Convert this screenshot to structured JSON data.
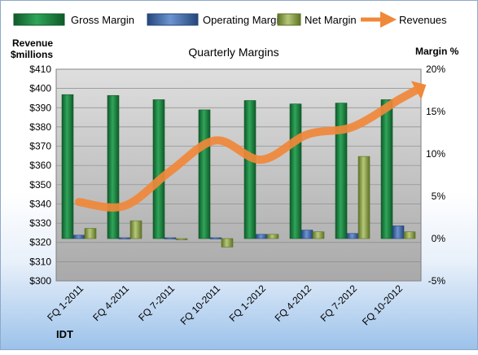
{
  "chart_data": {
    "type": "bar",
    "title": "Quarterly Margins",
    "left_axis_title": [
      "Revenue",
      "$millions"
    ],
    "right_axis_title": "Margin %",
    "footer_label": "IDT",
    "categories": [
      "FQ 1-2011",
      "FQ 4-2011",
      "FQ 7-2011",
      "FQ 10-2011",
      "FQ 1-2012",
      "FQ 4-2012",
      "FQ 7-2012",
      "FQ 10-2012"
    ],
    "left_axis": {
      "min": 300,
      "max": 410,
      "step": 10,
      "tick_labels": [
        "$300",
        "$310",
        "$320",
        "$330",
        "$340",
        "$350",
        "$360",
        "$370",
        "$380",
        "$390",
        "$400",
        "$410"
      ]
    },
    "right_axis": {
      "min": -5,
      "max": 20,
      "step": 5,
      "tick_labels": [
        "-5%",
        "0%",
        "5%",
        "10%",
        "15%",
        "20%"
      ]
    },
    "series": [
      {
        "name": "Gross Margin",
        "type": "bar",
        "axis": "right",
        "color": "#1e7a3c",
        "values": [
          17.0,
          16.9,
          16.4,
          15.2,
          16.3,
          15.9,
          16.0,
          16.4
        ]
      },
      {
        "name": "Operating Margin",
        "type": "bar",
        "axis": "right",
        "color": "#3a66a8",
        "values": [
          0.4,
          0.1,
          0.1,
          0.1,
          0.5,
          1.0,
          0.6,
          1.5
        ]
      },
      {
        "name": "Net Margin",
        "type": "bar",
        "axis": "right",
        "color": "#8ea44a",
        "values": [
          1.2,
          2.1,
          -0.1,
          -1.0,
          0.5,
          0.8,
          9.7,
          0.8
        ]
      },
      {
        "name": "Revenues",
        "type": "line",
        "axis": "left",
        "color": "#f0883a",
        "values": [
          341,
          339,
          357,
          373,
          363,
          376,
          380,
          394
        ]
      }
    ],
    "grid": true,
    "legend_position": "top"
  }
}
